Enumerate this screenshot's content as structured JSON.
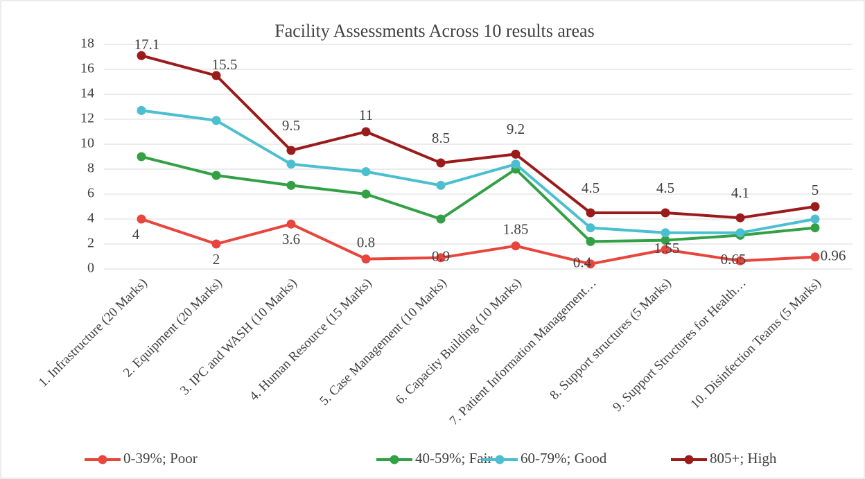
{
  "chart_data": {
    "type": "line",
    "title": "Facility Assessments Across 10 results areas",
    "categories": [
      "1. Infrastructure (20 Marks)",
      "2. Equipment (20 Marks)",
      "3.  IPC and WASH (10 Marks)",
      "4. Human Resource (15 Marks)",
      "5.  Case Management (10 Marks)",
      "6.  Capacity Building (10 Marks)",
      "7.  Patient Information Management…",
      "8.  Support structures (5 Marks)",
      "9.  Support Structures  for Health…",
      "10. Disinfection Teams (5 Marks)"
    ],
    "series": [
      {
        "name": "0-39%; Poor",
        "color": "#e8453c",
        "values": [
          4,
          2,
          3.6,
          0.8,
          0.9,
          1.85,
          0.4,
          1.55,
          0.65,
          0.96
        ]
      },
      {
        "name": "40-59%; Fair",
        "color": "#33a046",
        "values": [
          9,
          7.5,
          6.7,
          6,
          4,
          8,
          2.2,
          2.3,
          2.7,
          3.3
        ]
      },
      {
        "name": "60-79%; Good",
        "color": "#4bbfcf",
        "values": [
          12.7,
          11.9,
          8.4,
          7.8,
          6.7,
          8.4,
          3.3,
          2.9,
          2.9,
          4
        ]
      },
      {
        "name": "805+; High",
        "color": "#9b1b1b",
        "values": [
          17.1,
          15.5,
          9.5,
          11,
          8.5,
          9.2,
          4.5,
          4.5,
          4.1,
          5
        ]
      }
    ],
    "data_labels": [
      0,
      3
    ],
    "ylim": [
      0,
      18
    ],
    "yticks": [
      0,
      2,
      4,
      6,
      8,
      10,
      12,
      14,
      16,
      18
    ],
    "grid": true,
    "legend": "bottom"
  }
}
